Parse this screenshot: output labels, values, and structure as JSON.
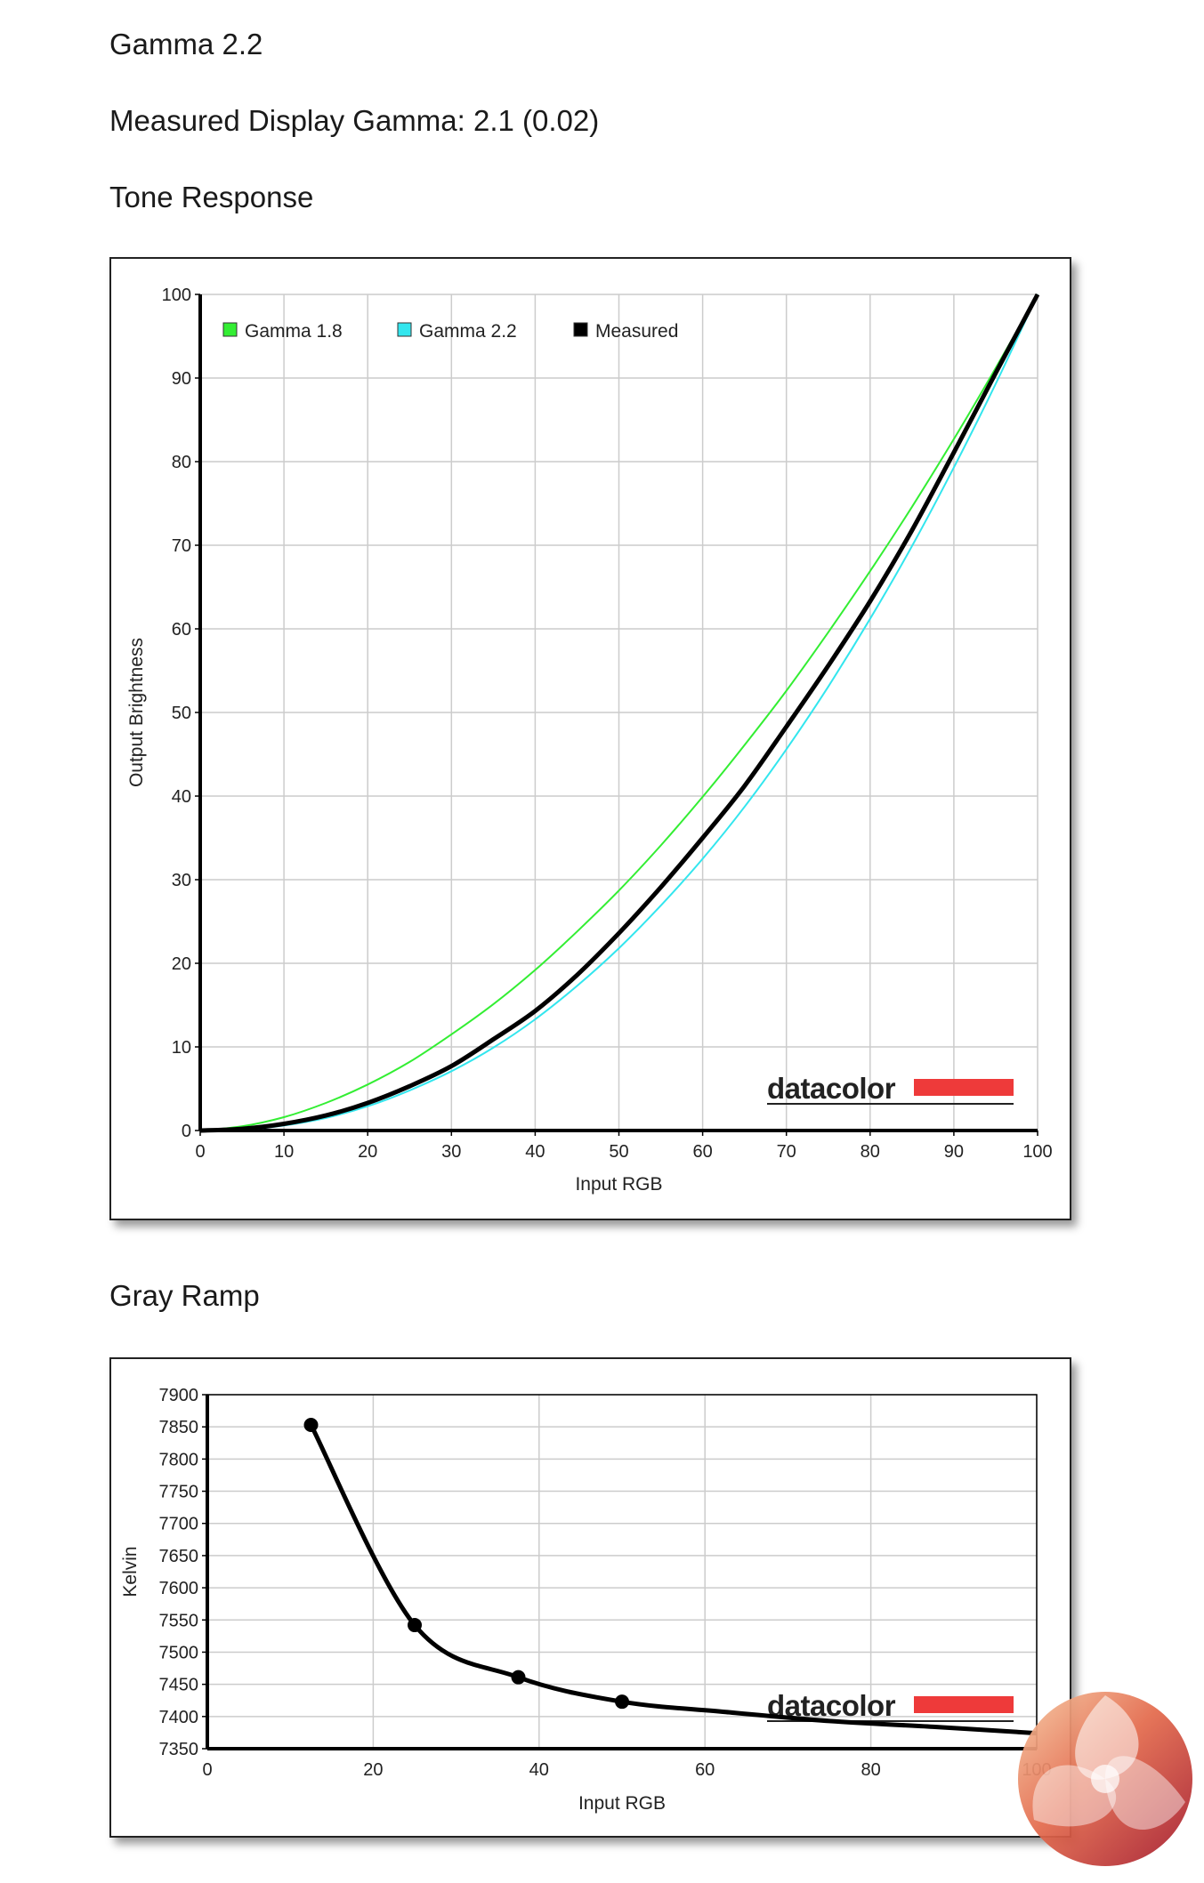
{
  "page": {
    "headings": {
      "preset": "Gamma 2.2",
      "measured_gamma": "Measured Display Gamma: 2.1 (0.02)",
      "tone_response": "Tone Response",
      "gray_ramp": "Gray Ramp"
    },
    "brand_logo_text": "datacolor",
    "colors": {
      "brand_red": "#ee3a3a",
      "gamma18": "#33ee33",
      "gamma22": "#33e6ee",
      "measured": "#000000",
      "grid": "#cccccc"
    }
  },
  "chart_data": [
    {
      "type": "line",
      "title": "Tone Response",
      "xlabel": "Input RGB",
      "ylabel": "Output Brightness",
      "xlim": [
        0,
        100
      ],
      "ylim": [
        0,
        100
      ],
      "xticks": [
        0,
        10,
        20,
        30,
        40,
        50,
        60,
        70,
        80,
        90,
        100
      ],
      "yticks": [
        0,
        10,
        20,
        30,
        40,
        50,
        60,
        70,
        80,
        90,
        100
      ],
      "grid": true,
      "legend_position": "top-left",
      "series": [
        {
          "name": "Gamma 1.8",
          "color": "#33ee33",
          "x": [
            0,
            5,
            10,
            15,
            20,
            25,
            30,
            35,
            40,
            45,
            50,
            55,
            60,
            65,
            70,
            75,
            80,
            85,
            90,
            95,
            100
          ],
          "y": [
            0,
            0.5,
            1.6,
            3.3,
            5.5,
            8.2,
            11.5,
            15.1,
            19.2,
            23.8,
            28.7,
            34.1,
            39.9,
            46.1,
            52.6,
            59.6,
            66.9,
            74.6,
            82.7,
            91.2,
            100
          ]
        },
        {
          "name": "Gamma 2.2",
          "color": "#33e6ee",
          "x": [
            0,
            5,
            10,
            15,
            20,
            25,
            30,
            35,
            40,
            45,
            50,
            55,
            60,
            65,
            70,
            75,
            80,
            85,
            90,
            95,
            100
          ],
          "y": [
            0,
            0.1,
            0.6,
            1.5,
            2.9,
            4.8,
            7.1,
            9.9,
            13.3,
            17.3,
            21.8,
            26.9,
            32.5,
            38.7,
            45.6,
            53.1,
            61.2,
            69.9,
            79.3,
            89.3,
            100
          ]
        },
        {
          "name": "Measured",
          "color": "#000000",
          "x": [
            0,
            5,
            10,
            15,
            20,
            25,
            30,
            35,
            40,
            45,
            50,
            55,
            60,
            65,
            70,
            75,
            80,
            85,
            90,
            95,
            100
          ],
          "y": [
            0,
            0.2,
            0.8,
            1.8,
            3.3,
            5.3,
            7.7,
            10.9,
            14.3,
            18.6,
            23.6,
            29.1,
            35.0,
            41.2,
            48.3,
            55.6,
            63.3,
            71.8,
            81.1,
            90.6,
            100
          ]
        }
      ]
    },
    {
      "type": "line",
      "title": "Gray Ramp",
      "xlabel": "Input RGB",
      "ylabel": "Kelvin",
      "xlim": [
        0,
        100
      ],
      "ylim": [
        7350,
        7900
      ],
      "xticks": [
        0,
        20,
        40,
        60,
        80,
        100
      ],
      "yticks": [
        7350,
        7400,
        7450,
        7500,
        7550,
        7600,
        7650,
        7700,
        7750,
        7800,
        7850,
        7900
      ],
      "grid": true,
      "series": [
        {
          "color": "#000000",
          "markers": true,
          "x": [
            12.5,
            25,
            37.5,
            50,
            62.5,
            75,
            87.5,
            100
          ],
          "y": [
            7853,
            7542,
            7461,
            7423,
            7407,
            7393,
            7384,
            7374
          ]
        }
      ]
    }
  ]
}
